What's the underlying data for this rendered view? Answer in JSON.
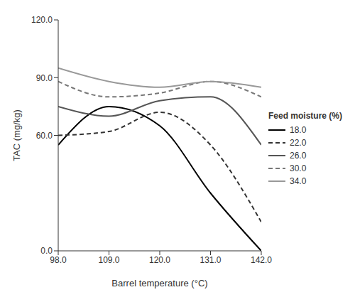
{
  "chart_data": {
    "type": "line",
    "x_label": "Barrel temperature (°C)",
    "y_label": "TAC (mg/kg)",
    "z_label": "Feed moisture (%)",
    "x": [
      98,
      109,
      120,
      131,
      142
    ],
    "xlim": [
      98,
      142
    ],
    "xticks": [
      {
        "value": 98,
        "label": "98.0"
      },
      {
        "value": 109,
        "label": "109.0"
      },
      {
        "value": 120,
        "label": "120.0"
      },
      {
        "value": 131,
        "label": "131.0"
      },
      {
        "value": 142,
        "label": "142.0"
      }
    ],
    "ylim": [
      0,
      120
    ],
    "yticks": [
      {
        "value": 0,
        "label": "0.0"
      },
      {
        "value": 60,
        "label": "60.0"
      },
      {
        "value": 90,
        "label": "90.0"
      },
      {
        "value": 120,
        "label": "120.0"
      }
    ],
    "grid": false,
    "legend": "right",
    "marker": "none",
    "series": [
      {
        "name": "18.0",
        "color": "#000000",
        "line_style": "solid",
        "values": [
          55,
          75,
          65,
          30,
          0
        ]
      },
      {
        "name": "22.0",
        "color": "#333333",
        "line_style": "dashed",
        "values": [
          60,
          62,
          72,
          55,
          15
        ]
      },
      {
        "name": "26.0",
        "color": "#555555",
        "line_style": "solid",
        "values": [
          75,
          70,
          78,
          80,
          55
        ]
      },
      {
        "name": "30.0",
        "color": "#777777",
        "line_style": "dashed",
        "values": [
          88,
          80,
          82,
          88,
          80
        ]
      },
      {
        "name": "34.0",
        "color": "#999999",
        "line_style": "solid",
        "values": [
          95,
          88,
          85,
          88,
          85
        ]
      }
    ]
  }
}
